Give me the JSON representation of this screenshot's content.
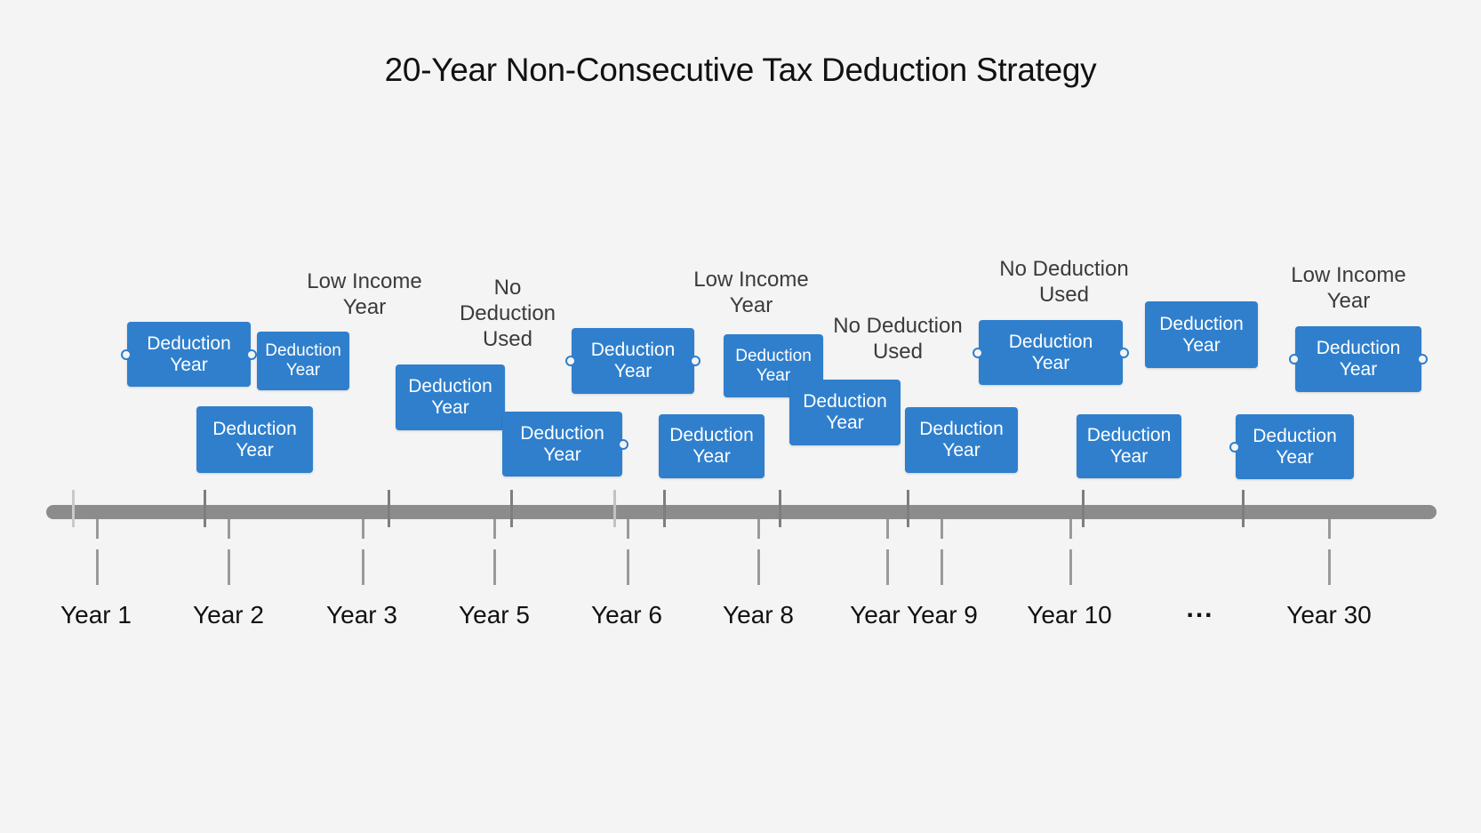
{
  "title": "20-Year Non-Consecutive Tax Deduction Strategy",
  "card": {
    "line1": "Deduction",
    "line2": "Year"
  },
  "notes": {
    "n1": {
      "line1": "Low Income",
      "line2": "Year"
    },
    "n2": {
      "line1": "No",
      "line2": "Deduction",
      "line3": "Used"
    },
    "n3": {
      "line1": "Low Income",
      "line2": "Year"
    },
    "n4": {
      "line1": "No Deduction",
      "line2": "Used"
    },
    "n5": {
      "line1": "No Deduction",
      "line2": "Used"
    },
    "n6": {
      "line1": "Low Income",
      "line2": "Year"
    }
  },
  "year_labels": [
    "Year 1",
    "Year 2",
    "Year 3",
    "Year 5",
    "Year 6",
    "Year 8",
    "Year Year 9",
    "Year 10",
    "Year 30"
  ],
  "ellipsis": "...",
  "colors": {
    "card": "#2f7fcd",
    "bar": "#8c8c8c",
    "background": "#f4f4f4"
  }
}
